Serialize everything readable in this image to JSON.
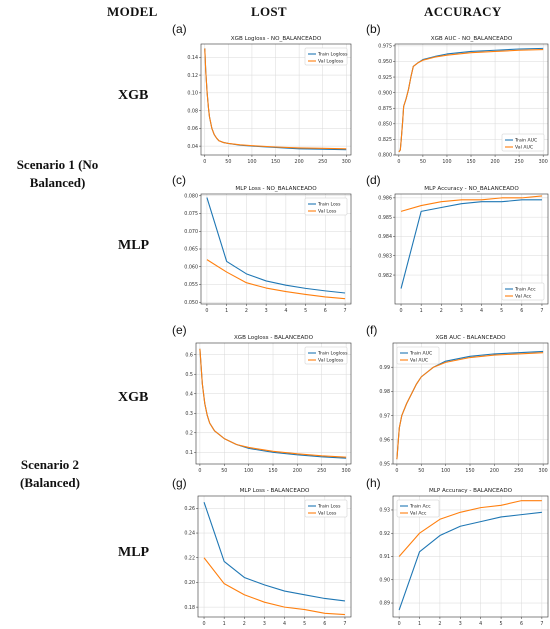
{
  "headers": {
    "model": "MODEL",
    "lost": "LOST",
    "accuracy": "ACCURACY"
  },
  "scenarios": {
    "s1_line1": "Scenario 1 (No",
    "s1_line2": "Balanced)",
    "s2_line1": "Scenario 2",
    "s2_line2": "(Balanced)"
  },
  "models": {
    "xgb1": "XGB",
    "mlp1": "MLP",
    "xgb2": "XGB",
    "mlp2": "MLP"
  },
  "panel_labels": {
    "a": "(a)",
    "b": "(b)",
    "c": "(c)",
    "d": "(d)",
    "e": "(e)",
    "f": "(f)",
    "g": "(g)",
    "h": "(h)"
  },
  "colors": {
    "train": "#1f77b4",
    "val": "#ff7f0e",
    "grid": "#d9d9d9"
  },
  "chart_data": [
    {
      "id": "a",
      "type": "line",
      "title": "XGB Logloss - NO_BALANCEADO",
      "x": [
        0,
        2,
        5,
        8,
        10,
        15,
        20,
        25,
        30,
        40,
        50,
        75,
        100,
        150,
        200,
        250,
        300
      ],
      "xlim": [
        -8,
        310
      ],
      "ylim": [
        0.03,
        0.155
      ],
      "xticks": [
        0,
        50,
        100,
        150,
        200,
        250,
        300
      ],
      "yticks": [
        0.04,
        0.06,
        0.08,
        0.1,
        0.12,
        0.14
      ],
      "ytick_labels": [
        "0.04",
        "0.06",
        "0.08",
        "0.10",
        "0.12",
        "0.14"
      ],
      "legend": "top-right",
      "series": [
        {
          "name": "Train Logloss",
          "color": "#1f77b4",
          "values": [
            0.15,
            0.125,
            0.1,
            0.082,
            0.073,
            0.06,
            0.053,
            0.049,
            0.046,
            0.044,
            0.043,
            0.041,
            0.04,
            0.0385,
            0.037,
            0.0365,
            0.036
          ]
        },
        {
          "name": "Val Logloss",
          "color": "#ff7f0e",
          "values": [
            0.15,
            0.125,
            0.1,
            0.082,
            0.073,
            0.06,
            0.053,
            0.049,
            0.046,
            0.044,
            0.043,
            0.0415,
            0.0405,
            0.039,
            0.038,
            0.0375,
            0.037
          ]
        }
      ]
    },
    {
      "id": "b",
      "type": "line",
      "title": "XGB AUC - NO_BALANCEADO",
      "x": [
        0,
        3,
        5,
        8,
        10,
        15,
        20,
        25,
        30,
        40,
        50,
        75,
        100,
        150,
        200,
        250,
        300
      ],
      "xlim": [
        -8,
        310
      ],
      "ylim": [
        0.8,
        0.978
      ],
      "xticks": [
        0,
        50,
        100,
        150,
        200,
        250,
        300
      ],
      "yticks": [
        0.8,
        0.825,
        0.85,
        0.875,
        0.9,
        0.925,
        0.95,
        0.975
      ],
      "ytick_labels": [
        "0.800",
        "0.825",
        "0.850",
        "0.875",
        "0.900",
        "0.925",
        "0.950",
        "0.975"
      ],
      "legend": "bottom-right",
      "series": [
        {
          "name": "Train AUC",
          "color": "#1f77b4",
          "values": [
            0.805,
            0.808,
            0.825,
            0.855,
            0.878,
            0.89,
            0.905,
            0.925,
            0.942,
            0.948,
            0.953,
            0.958,
            0.962,
            0.966,
            0.968,
            0.97,
            0.971
          ]
        },
        {
          "name": "Val AUC",
          "color": "#ff7f0e",
          "values": [
            0.805,
            0.808,
            0.825,
            0.855,
            0.878,
            0.89,
            0.905,
            0.925,
            0.942,
            0.948,
            0.952,
            0.957,
            0.96,
            0.964,
            0.966,
            0.968,
            0.969
          ]
        }
      ]
    },
    {
      "id": "c",
      "type": "line",
      "title": "MLP Loss - NO_BALANCEADO",
      "x": [
        0,
        1,
        2,
        3,
        4,
        5,
        6,
        7
      ],
      "xlim": [
        -0.3,
        7.3
      ],
      "ylim": [
        0.0495,
        0.0805
      ],
      "xticks": [
        0,
        1,
        2,
        3,
        4,
        5,
        6,
        7
      ],
      "yticks": [
        0.05,
        0.055,
        0.06,
        0.065,
        0.07,
        0.075,
        0.08
      ],
      "ytick_labels": [
        "0.050",
        "0.055",
        "0.060",
        "0.065",
        "0.070",
        "0.075",
        "0.080"
      ],
      "legend": "top-right",
      "series": [
        {
          "name": "Train Loss",
          "color": "#1f77b4",
          "values": [
            0.0795,
            0.0615,
            0.058,
            0.056,
            0.0548,
            0.0539,
            0.0532,
            0.0526
          ]
        },
        {
          "name": "Val Loss",
          "color": "#ff7f0e",
          "values": [
            0.062,
            0.0585,
            0.0555,
            0.054,
            0.053,
            0.0522,
            0.0515,
            0.051
          ]
        }
      ]
    },
    {
      "id": "d",
      "type": "line",
      "title": "MLP Accuracy - NO_BALANCEADO",
      "x": [
        0,
        1,
        2,
        3,
        4,
        5,
        6,
        7
      ],
      "xlim": [
        -0.3,
        7.3
      ],
      "ylim": [
        0.9805,
        0.9862
      ],
      "xticks": [
        0,
        1,
        2,
        3,
        4,
        5,
        6,
        7
      ],
      "yticks": [
        0.982,
        0.983,
        0.984,
        0.985,
        0.986
      ],
      "ytick_labels": [
        "0.982",
        "0.983",
        "0.984",
        "0.985",
        "0.986"
      ],
      "legend": "bottom-right",
      "series": [
        {
          "name": "Train Acc",
          "color": "#1f77b4",
          "values": [
            0.9813,
            0.9853,
            0.9855,
            0.9857,
            0.9858,
            0.9858,
            0.9859,
            0.9859
          ]
        },
        {
          "name": "Val Acc",
          "color": "#ff7f0e",
          "values": [
            0.9853,
            0.9856,
            0.9858,
            0.9859,
            0.9859,
            0.986,
            0.986,
            0.9861
          ]
        }
      ]
    },
    {
      "id": "e",
      "type": "line",
      "title": "XGB Logloss - BALANCEADO",
      "x": [
        0,
        5,
        10,
        15,
        20,
        25,
        30,
        40,
        50,
        75,
        100,
        150,
        200,
        250,
        300
      ],
      "xlim": [
        -8,
        310
      ],
      "ylim": [
        0.04,
        0.66
      ],
      "xticks": [
        0,
        50,
        100,
        150,
        200,
        250,
        300
      ],
      "yticks": [
        0.1,
        0.2,
        0.3,
        0.4,
        0.5,
        0.6
      ],
      "ytick_labels": [
        "0.1",
        "0.2",
        "0.3",
        "0.4",
        "0.5",
        "0.6"
      ],
      "legend": "top-right",
      "series": [
        {
          "name": "Train Logloss",
          "color": "#1f77b4",
          "values": [
            0.63,
            0.45,
            0.35,
            0.29,
            0.25,
            0.23,
            0.21,
            0.19,
            0.17,
            0.14,
            0.12,
            0.1,
            0.087,
            0.077,
            0.07
          ]
        },
        {
          "name": "Val Logloss",
          "color": "#ff7f0e",
          "values": [
            0.63,
            0.45,
            0.35,
            0.29,
            0.25,
            0.23,
            0.21,
            0.19,
            0.17,
            0.14,
            0.125,
            0.105,
            0.092,
            0.082,
            0.075
          ]
        }
      ]
    },
    {
      "id": "f",
      "type": "line",
      "title": "XGB AUC - BALANCEADO",
      "x": [
        0,
        3,
        5,
        10,
        20,
        30,
        40,
        50,
        75,
        100,
        150,
        200,
        250,
        300
      ],
      "xlim": [
        -8,
        310
      ],
      "ylim": [
        0.95,
        1.0
      ],
      "xticks": [
        0,
        50,
        100,
        150,
        200,
        250,
        300
      ],
      "yticks": [
        0.95,
        0.96,
        0.97,
        0.98,
        0.99
      ],
      "ytick_labels": [
        "0.95",
        "0.96",
        "0.97",
        "0.98",
        "0.99"
      ],
      "legend": "top-left",
      "series": [
        {
          "name": "Train AUC",
          "color": "#1f77b4",
          "values": [
            0.952,
            0.96,
            0.965,
            0.97,
            0.975,
            0.979,
            0.983,
            0.986,
            0.99,
            0.9925,
            0.9945,
            0.9955,
            0.996,
            0.9965
          ]
        },
        {
          "name": "Val AUC",
          "color": "#ff7f0e",
          "values": [
            0.952,
            0.96,
            0.965,
            0.97,
            0.975,
            0.979,
            0.983,
            0.986,
            0.99,
            0.992,
            0.994,
            0.995,
            0.9955,
            0.996
          ]
        }
      ]
    },
    {
      "id": "g",
      "type": "line",
      "title": "MLP Loss - BALANCEADO",
      "x": [
        0,
        1,
        2,
        3,
        4,
        5,
        6,
        7
      ],
      "xlim": [
        -0.3,
        7.3
      ],
      "ylim": [
        0.172,
        0.27
      ],
      "xticks": [
        0,
        1,
        2,
        3,
        4,
        5,
        6,
        7
      ],
      "yticks": [
        0.18,
        0.2,
        0.22,
        0.24,
        0.26
      ],
      "ytick_labels": [
        "0.18",
        "0.20",
        "0.22",
        "0.24",
        "0.26"
      ],
      "legend": "top-right",
      "series": [
        {
          "name": "Train Loss",
          "color": "#1f77b4",
          "values": [
            0.265,
            0.217,
            0.204,
            0.198,
            0.193,
            0.19,
            0.187,
            0.185
          ]
        },
        {
          "name": "Val Loss",
          "color": "#ff7f0e",
          "values": [
            0.22,
            0.199,
            0.19,
            0.184,
            0.18,
            0.178,
            0.175,
            0.174
          ]
        }
      ]
    },
    {
      "id": "h",
      "type": "line",
      "title": "MLP Accuracy - BALANCEADO",
      "x": [
        0,
        1,
        2,
        3,
        4,
        5,
        6,
        7
      ],
      "xlim": [
        -0.3,
        7.3
      ],
      "ylim": [
        0.884,
        0.936
      ],
      "xticks": [
        0,
        1,
        2,
        3,
        4,
        5,
        6,
        7
      ],
      "yticks": [
        0.89,
        0.9,
        0.91,
        0.92,
        0.93
      ],
      "ytick_labels": [
        "0.89",
        "0.90",
        "0.91",
        "0.92",
        "0.93"
      ],
      "legend": "top-left",
      "series": [
        {
          "name": "Train Acc",
          "color": "#1f77b4",
          "values": [
            0.887,
            0.912,
            0.919,
            0.923,
            0.925,
            0.927,
            0.928,
            0.929
          ]
        },
        {
          "name": "Val Acc",
          "color": "#ff7f0e",
          "values": [
            0.91,
            0.92,
            0.926,
            0.929,
            0.931,
            0.932,
            0.934,
            0.934
          ]
        }
      ]
    }
  ]
}
